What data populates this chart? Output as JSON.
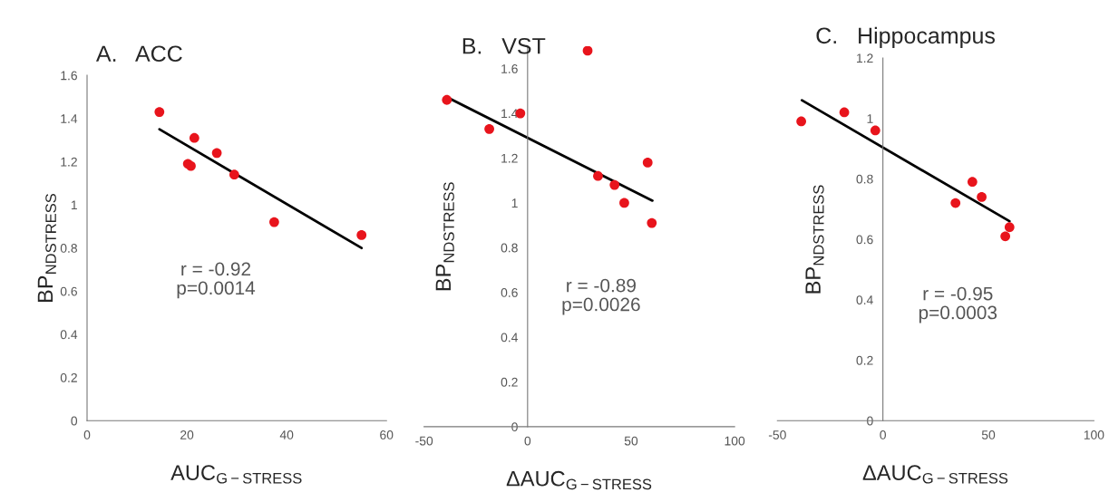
{
  "chart_data": [
    {
      "type": "scatter",
      "title": "A.   ACC",
      "xlabel": "AUC$_{G−STRESS}$",
      "ylabel": "BP$_{NDSTRESS}$",
      "annotations": [
        "r = -0.92",
        "p=0.0014"
      ],
      "marker": "circle",
      "grid": false,
      "legend": false,
      "xlim": [
        0,
        60
      ],
      "xticks": [
        0,
        20,
        40,
        60
      ],
      "ylim": [
        0,
        1.6
      ],
      "yticks": [
        0,
        0.2,
        0.4,
        0.6,
        0.8,
        1,
        1.2,
        1.4,
        1.6
      ],
      "series": [
        {
          "color": "#e8141c",
          "x": [
            14.5,
            20.2,
            20.8,
            21.5,
            26,
            29.5,
            37.5,
            55
          ],
          "values": [
            1.43,
            1.19,
            1.18,
            1.31,
            1.24,
            1.14,
            0.92,
            0.86
          ]
        },
        {
          "type": "line",
          "marker": "none",
          "color": "#000000",
          "x": [
            14.5,
            55
          ],
          "values": [
            1.35,
            0.8
          ]
        }
      ]
    },
    {
      "type": "scatter",
      "title": "B.   VST",
      "xlabel": "ΔAUC$_{G−STRESS}$",
      "ylabel": "BP$_{NDSTRESS}$",
      "annotations": [
        "r = -0.89",
        "p=0.0026"
      ],
      "marker": "circle",
      "grid": false,
      "legend": false,
      "xlim": [
        -50,
        100
      ],
      "xticks": [
        -50,
        0,
        50,
        100
      ],
      "ylim": [
        0,
        1.7
      ],
      "yticks": [
        0,
        0.2,
        0.4,
        0.6,
        0.8,
        1,
        1.2,
        1.4,
        1.6
      ],
      "series": [
        {
          "color": "#e8141c",
          "x": [
            -39,
            -18.5,
            -3.5,
            29,
            34,
            42,
            46.7,
            58,
            60
          ],
          "values": [
            1.46,
            1.33,
            1.4,
            1.68,
            1.12,
            1.08,
            1.0,
            1.18,
            0.91
          ]
        },
        {
          "type": "line",
          "marker": "none",
          "color": "#000000",
          "x": [
            -38.5,
            60.3
          ],
          "values": [
            1.47,
            1.01
          ]
        }
      ]
    },
    {
      "type": "scatter",
      "title": "C.   Hippocampus",
      "xlabel": "ΔAUC$_{G−STRESS}$",
      "ylabel": "BP$_{NDSTRESS}$",
      "annotations": [
        "r = -0.95",
        "p=0.0003"
      ],
      "marker": "circle",
      "grid": false,
      "legend": false,
      "xlim": [
        -50,
        100
      ],
      "xticks": [
        -50,
        0,
        50,
        100
      ],
      "ylim": [
        0,
        1.2
      ],
      "yticks": [
        0,
        0.2,
        0.4,
        0.6,
        0.8,
        1,
        1.2
      ],
      "series": [
        {
          "color": "#e8141c",
          "x": [
            -38.7,
            -18.3,
            -3.6,
            34.4,
            42.4,
            46.8,
            58,
            60
          ],
          "values": [
            0.99,
            1.02,
            0.96,
            0.72,
            0.79,
            0.74,
            0.61,
            0.64
          ]
        },
        {
          "type": "line",
          "marker": "none",
          "color": "#000000",
          "x": [
            -38.4,
            60
          ],
          "values": [
            1.06,
            0.66
          ]
        }
      ]
    }
  ]
}
